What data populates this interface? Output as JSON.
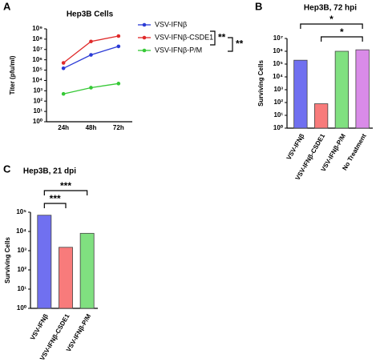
{
  "chart_data": [
    {
      "type": "line",
      "panel": "A",
      "title": "Hep3B Cells",
      "y_label": "Titer (pfu/ml)",
      "categories": [
        "24h",
        "48h",
        "72h"
      ],
      "log": true,
      "ylim": [
        1,
        1000000000
      ],
      "yticks": [
        {
          "value": 1,
          "label": "10⁰"
        },
        {
          "value": 10,
          "label": "10¹"
        },
        {
          "value": 100,
          "label": "10²"
        },
        {
          "value": 1000,
          "label": "10³"
        },
        {
          "value": 10000,
          "label": "10⁴"
        },
        {
          "value": 100000,
          "label": "10⁵"
        },
        {
          "value": 1000000,
          "label": "10⁶"
        },
        {
          "value": 10000000,
          "label": "10⁷"
        },
        {
          "value": 100000000,
          "label": "10⁸"
        },
        {
          "value": 1000000000,
          "label": "10⁹"
        }
      ],
      "series": [
        {
          "name": "VSV-IFNβ",
          "color": "#2b3bd6",
          "values": [
            150000,
            3000000,
            20000000
          ]
        },
        {
          "name": "VSV-IFNβ-CSDE1",
          "color": "#e02a2a",
          "values": [
            500000,
            60000000,
            200000000
          ]
        },
        {
          "name": "VSV-IFNβ-P/M",
          "color": "#36c936",
          "values": [
            500,
            2000,
            5000
          ]
        }
      ],
      "annotations": [
        "**",
        "**"
      ]
    },
    {
      "type": "bar",
      "panel": "B",
      "title": "Hep3B, 72 hpi",
      "y_label": "Surviving Cells",
      "categories": [
        "VSV-IFNβ",
        "VSV-IFNβ-CSDE1",
        "VSV-IFNβ-P/M",
        "No Treatment"
      ],
      "log": true,
      "values": [
        200000,
        80,
        1000000,
        1300000
      ],
      "colors": [
        "#7070f0",
        "#f87b7b",
        "#80e080",
        "#d98be8"
      ],
      "ylim": [
        1,
        10000000
      ],
      "yticks": [
        {
          "value": 1,
          "label": "10⁰"
        },
        {
          "value": 10,
          "label": "10¹"
        },
        {
          "value": 100,
          "label": "10²"
        },
        {
          "value": 1000,
          "label": "10³"
        },
        {
          "value": 10000,
          "label": "10⁴"
        },
        {
          "value": 100000,
          "label": "10⁵"
        },
        {
          "value": 1000000,
          "label": "10⁶"
        },
        {
          "value": 10000000,
          "label": "10⁷"
        }
      ],
      "annotations": [
        "*",
        "*"
      ]
    },
    {
      "type": "bar",
      "panel": "C",
      "title": "Hep3B, 21 dpi",
      "y_label": "Surviving Cells",
      "categories": [
        "VSV-IFNβ",
        "VSV-IFNβ-CSDE1",
        "VSV-IFNβ-P/M"
      ],
      "log": true,
      "values": [
        70000,
        1500,
        8000
      ],
      "colors": [
        "#7070f0",
        "#f87b7b",
        "#80e080"
      ],
      "ylim": [
        1,
        100000
      ],
      "yticks": [
        {
          "value": 1,
          "label": "10⁰"
        },
        {
          "value": 10,
          "label": "10¹"
        },
        {
          "value": 100,
          "label": "10²"
        },
        {
          "value": 1000,
          "label": "10³"
        },
        {
          "value": 10000,
          "label": "10⁴"
        },
        {
          "value": 100000,
          "label": "10⁵"
        }
      ],
      "annotations": [
        "***",
        "***"
      ]
    }
  ]
}
